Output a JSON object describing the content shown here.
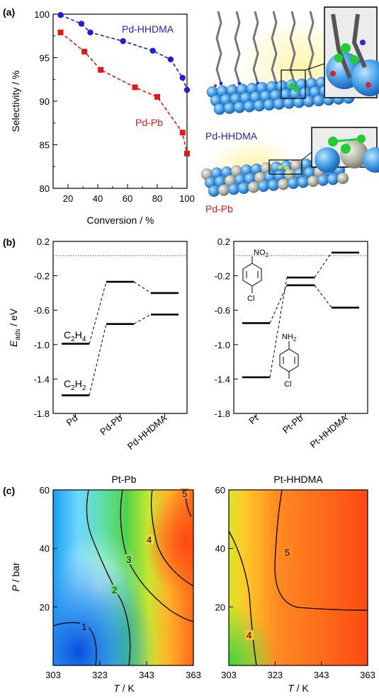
{
  "panel_labels": {
    "a": "(a)",
    "b": "(b)",
    "c": "(c)"
  },
  "chart_data": [
    {
      "id": "a",
      "type": "scatter",
      "xlabel": "Conversion / %",
      "ylabel": "Selectivity / %",
      "xlim": [
        10,
        100
      ],
      "ylim": [
        80,
        100
      ],
      "xticks": [
        "20",
        "40",
        "60",
        "80",
        "100"
      ],
      "yticks": [
        "80",
        "85",
        "90",
        "95",
        "100"
      ],
      "series": [
        {
          "name": "Pd-HHDMA",
          "color": "#1f1fd6",
          "marker": "circle",
          "x": [
            15,
            29,
            35,
            57,
            77,
            89,
            97,
            100
          ],
          "y": [
            99.9,
            98.9,
            97.9,
            96.9,
            95.8,
            94.8,
            92.7,
            91.3
          ]
        },
        {
          "name": "Pd-Pb",
          "color": "#e01919",
          "marker": "square",
          "x": [
            15,
            31,
            42,
            65,
            80,
            97,
            100
          ],
          "y": [
            97.9,
            95.7,
            93.6,
            91.6,
            90.5,
            86.4,
            84.0
          ]
        }
      ],
      "illustration_labels": [
        {
          "text": "Pd-HHDMA",
          "color": "#1f1fd6"
        },
        {
          "text": "Pd-Pb",
          "color": "#e01919"
        }
      ]
    },
    {
      "id": "b-left",
      "type": "energy-diagram",
      "ylabel_main": "E",
      "ylabel_sub": "ads",
      "ylabel_unit": " / eV",
      "ylim": [
        -1.8,
        0.2
      ],
      "yticks": [
        "0.2",
        "-0.2",
        "-0.6",
        "-1.0",
        "-1.4",
        "-1.8"
      ],
      "categories": [
        "Pd",
        "Pd-Pb",
        "Pd-HHDMA"
      ],
      "series": [
        {
          "name": "C2H4",
          "label_main": "C",
          "label_sub1": "2",
          "label_mid": "H",
          "label_sub2": "4",
          "values": [
            -0.99,
            -0.27,
            -0.4
          ]
        },
        {
          "name": "C2H2",
          "label_main": "C",
          "label_sub1": "2",
          "label_mid": "H",
          "label_sub2": "2",
          "values": [
            -1.59,
            -0.76,
            -0.65
          ]
        }
      ]
    },
    {
      "id": "b-right",
      "type": "energy-diagram",
      "ylim": [
        -1.8,
        0.2
      ],
      "yticks": [
        "0.2",
        "-0.2",
        "-0.6",
        "-1.0",
        "-1.4",
        "-1.8"
      ],
      "categories": [
        "Pt",
        "Pt-Pb",
        "Pt-HHDMA"
      ],
      "series": [
        {
          "name": "nitro",
          "values": [
            -0.75,
            -0.31,
            -0.57
          ]
        },
        {
          "name": "amine",
          "values": [
            -1.38,
            -0.22,
            0.07
          ]
        }
      ],
      "molecule_labels": {
        "no2": "NO",
        "no2_sub": "2",
        "nh2": "NH",
        "nh2_sub": "2",
        "cl_top": "Cl",
        "cl_bottom": "Cl"
      }
    },
    {
      "id": "c-left",
      "type": "heatmap",
      "title": "Pt-Pb",
      "xlabel_main": "T",
      "xlabel_unit": " / K",
      "ylabel_main": "P",
      "ylabel_unit": " / bar",
      "xlim": [
        303,
        363
      ],
      "ylim": [
        0,
        60
      ],
      "xticks": [
        "303",
        "323",
        "343",
        "363"
      ],
      "yticks": [
        "20",
        "40",
        "60"
      ],
      "contour_labels": [
        "1",
        "2",
        "3",
        "4",
        "5"
      ]
    },
    {
      "id": "c-right",
      "type": "heatmap",
      "title": "Pt-HHDMA",
      "xlabel_main": "T",
      "xlabel_unit": " / K",
      "ylabel_main": "",
      "xlim": [
        303,
        363
      ],
      "ylim": [
        0,
        60
      ],
      "xticks": [
        "303",
        "323",
        "343",
        "363"
      ],
      "yticks": [
        "20",
        "40",
        "60"
      ],
      "contour_labels": [
        "4",
        "5"
      ]
    }
  ]
}
